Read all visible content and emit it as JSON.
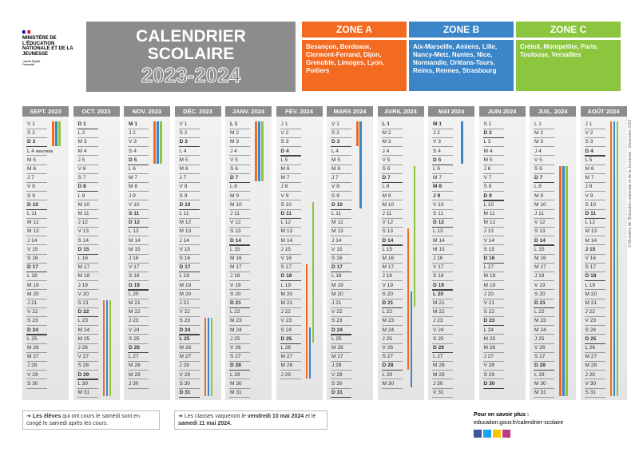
{
  "ministry": {
    "name": "MINISTÈRE DE L'ÉDUCATION NATIONALE ET DE LA JEUNESSE",
    "motto": "Liberté Égalité Fraternité"
  },
  "header": {
    "title": "CALENDRIER SCOLAIRE",
    "years": "2023-2024"
  },
  "zones": [
    {
      "name": "ZONE A",
      "academies": "Besançon, Bordeaux, Clermont-Ferrand, Dijon, Grenoble, Limoges, Lyon, Poitiers"
    },
    {
      "name": "ZONE B",
      "academies": "Aix-Marseille, Amiens, Lille, Nancy-Metz, Nantes, Nice, Normandie, Orléans-Tours, Reims, Rennes, Strasbourg"
    },
    {
      "name": "ZONE C",
      "academies": "Créteil, Montpellier, Paris, Toulouse, Versailles"
    }
  ],
  "rentree": "RENTRÉE",
  "months": [
    {
      "name": "SEPT. 2023",
      "days": [
        "V 1",
        "S 2",
        "D 3",
        "L 4",
        "M 5",
        "M 6",
        "J 7",
        "V 8",
        "S 9",
        "D 10",
        "L 11",
        "M 12",
        "M 13",
        "J 14",
        "V 15",
        "S 16",
        "D 17",
        "L 18",
        "M 19",
        "M 20",
        "J 21",
        "V 22",
        "S 23",
        "D 24",
        "L 25",
        "M 26",
        "M 27",
        "J 28",
        "V 29",
        "S 30"
      ]
    },
    {
      "name": "OCT. 2023",
      "days": [
        "D 1",
        "L 2",
        "M 3",
        "M 4",
        "J 5",
        "V 6",
        "S 7",
        "D 8",
        "L 9",
        "M 10",
        "M 11",
        "J 12",
        "V 13",
        "S 14",
        "D 15",
        "L 16",
        "M 17",
        "M 18",
        "J 19",
        "V 20",
        "S 21",
        "D 22",
        "L 23",
        "M 24",
        "M 25",
        "J 26",
        "V 27",
        "S 28",
        "D 29",
        "L 30",
        "M 31"
      ]
    },
    {
      "name": "NOV. 2023",
      "days": [
        "M 1",
        "J 2",
        "V 3",
        "S 4",
        "D 5",
        "L 6",
        "M 7",
        "M 8",
        "J 9",
        "V 10",
        "S 11",
        "D 12",
        "L 13",
        "M 14",
        "M 15",
        "J 16",
        "V 17",
        "S 18",
        "D 19",
        "L 20",
        "M 21",
        "M 22",
        "J 23",
        "V 24",
        "S 25",
        "D 26",
        "L 27",
        "M 28",
        "M 29",
        "J 30"
      ]
    },
    {
      "name": "DÉC. 2023",
      "days": [
        "V 1",
        "S 2",
        "D 3",
        "L 4",
        "M 5",
        "M 6",
        "J 7",
        "V 8",
        "S 9",
        "D 10",
        "L 11",
        "M 12",
        "M 13",
        "J 14",
        "V 15",
        "S 16",
        "D 17",
        "L 18",
        "M 19",
        "M 20",
        "J 21",
        "V 22",
        "S 23",
        "D 24",
        "L 25",
        "M 26",
        "M 27",
        "J 28",
        "V 29",
        "S 30",
        "D 31"
      ]
    },
    {
      "name": "JANV. 2024",
      "days": [
        "L 1",
        "M 2",
        "M 3",
        "J 4",
        "V 5",
        "S 6",
        "D 7",
        "L 8",
        "M 9",
        "M 10",
        "J 11",
        "V 12",
        "S 13",
        "D 14",
        "L 15",
        "M 16",
        "M 17",
        "J 18",
        "V 19",
        "S 20",
        "D 21",
        "L 22",
        "M 23",
        "M 24",
        "J 25",
        "V 26",
        "S 27",
        "D 28",
        "L 29",
        "M 30",
        "M 31"
      ]
    },
    {
      "name": "FÉV. 2024",
      "days": [
        "J 1",
        "V 2",
        "S 3",
        "D 4",
        "L 5",
        "M 6",
        "M 7",
        "J 8",
        "V 9",
        "S 10",
        "D 11",
        "L 12",
        "M 13",
        "M 14",
        "J 15",
        "V 16",
        "S 17",
        "D 18",
        "L 19",
        "M 20",
        "M 21",
        "J 22",
        "V 23",
        "S 24",
        "D 25",
        "L 26",
        "M 27",
        "M 28",
        "J 29"
      ]
    },
    {
      "name": "MARS 2024",
      "days": [
        "V 1",
        "S 2",
        "D 3",
        "L 4",
        "M 5",
        "M 6",
        "J 7",
        "V 8",
        "S 9",
        "D 10",
        "L 11",
        "M 12",
        "M 13",
        "J 14",
        "V 15",
        "S 16",
        "D 17",
        "L 18",
        "M 19",
        "M 20",
        "J 21",
        "V 22",
        "S 23",
        "D 24",
        "L 25",
        "M 26",
        "M 27",
        "J 28",
        "V 29",
        "S 30",
        "D 31"
      ]
    },
    {
      "name": "AVRIL 2024",
      "days": [
        "L 1",
        "M 2",
        "M 3",
        "J 4",
        "V 5",
        "S 6",
        "D 7",
        "L 8",
        "M 9",
        "M 10",
        "J 11",
        "V 12",
        "S 13",
        "D 14",
        "L 15",
        "M 16",
        "M 17",
        "J 18",
        "V 19",
        "S 20",
        "D 21",
        "L 22",
        "M 23",
        "M 24",
        "J 25",
        "V 26",
        "S 27",
        "D 28",
        "L 29",
        "M 30"
      ]
    },
    {
      "name": "MAI 2024",
      "days": [
        "M 1",
        "J 2",
        "V 3",
        "S 4",
        "D 5",
        "L 6",
        "M 7",
        "M 8",
        "J 9",
        "V 10",
        "S 11",
        "D 12",
        "L 13",
        "M 14",
        "M 15",
        "J 16",
        "V 17",
        "S 18",
        "D 19",
        "L 20",
        "M 21",
        "M 22",
        "J 23",
        "V 24",
        "S 25",
        "D 26",
        "L 27",
        "M 28",
        "M 29",
        "J 30",
        "V 31"
      ]
    },
    {
      "name": "JUIN 2024",
      "days": [
        "S 1",
        "D 2",
        "L 3",
        "M 4",
        "M 5",
        "J 6",
        "V 7",
        "S 8",
        "D 9",
        "L 10",
        "M 11",
        "M 12",
        "J 13",
        "V 14",
        "S 15",
        "D 16",
        "L 17",
        "M 18",
        "M 19",
        "J 20",
        "V 21",
        "S 22",
        "D 23",
        "L 24",
        "M 25",
        "M 26",
        "J 27",
        "V 28",
        "S 29",
        "D 30"
      ]
    },
    {
      "name": "JUIL. 2024",
      "days": [
        "L 1",
        "M 2",
        "M 3",
        "J 4",
        "V 5",
        "S 6",
        "D 7",
        "L 8",
        "M 9",
        "M 10",
        "J 11",
        "V 12",
        "S 13",
        "D 14",
        "L 15",
        "M 16",
        "M 17",
        "J 18",
        "V 19",
        "S 20",
        "D 21",
        "L 22",
        "M 23",
        "M 24",
        "J 25",
        "V 26",
        "S 27",
        "D 28",
        "L 29",
        "M 30",
        "M 31"
      ]
    },
    {
      "name": "AOÛT 2024",
      "days": [
        "J 1",
        "V 2",
        "S 3",
        "D 4",
        "L 5",
        "M 6",
        "M 7",
        "J 8",
        "V 9",
        "S 10",
        "D 11",
        "L 12",
        "M 13",
        "M 14",
        "J 15",
        "V 16",
        "S 17",
        "D 18",
        "L 19",
        "M 20",
        "M 21",
        "J 22",
        "V 23",
        "S 24",
        "D 25",
        "L 26",
        "M 27",
        "M 28",
        "J 29",
        "V 30",
        "S 31"
      ]
    }
  ],
  "notes": [
    {
      "bold": "Les élèves",
      "text": " qui ont cours le samedi sont en congé le samedi après les cours."
    },
    {
      "text1": "Les classes vaqueront le ",
      "bold1": "vendredi 10 mai 2024",
      "text2": " et le ",
      "bold2": "samedi 11 mai 2024."
    }
  ],
  "more": {
    "label": "Pour en savoir plus :",
    "url": "education.gouv.fr/calendrier-scolaire"
  },
  "credit": "© Ministère de l'Éducation nationale et de la Jeunesse · Décembre 2022"
}
